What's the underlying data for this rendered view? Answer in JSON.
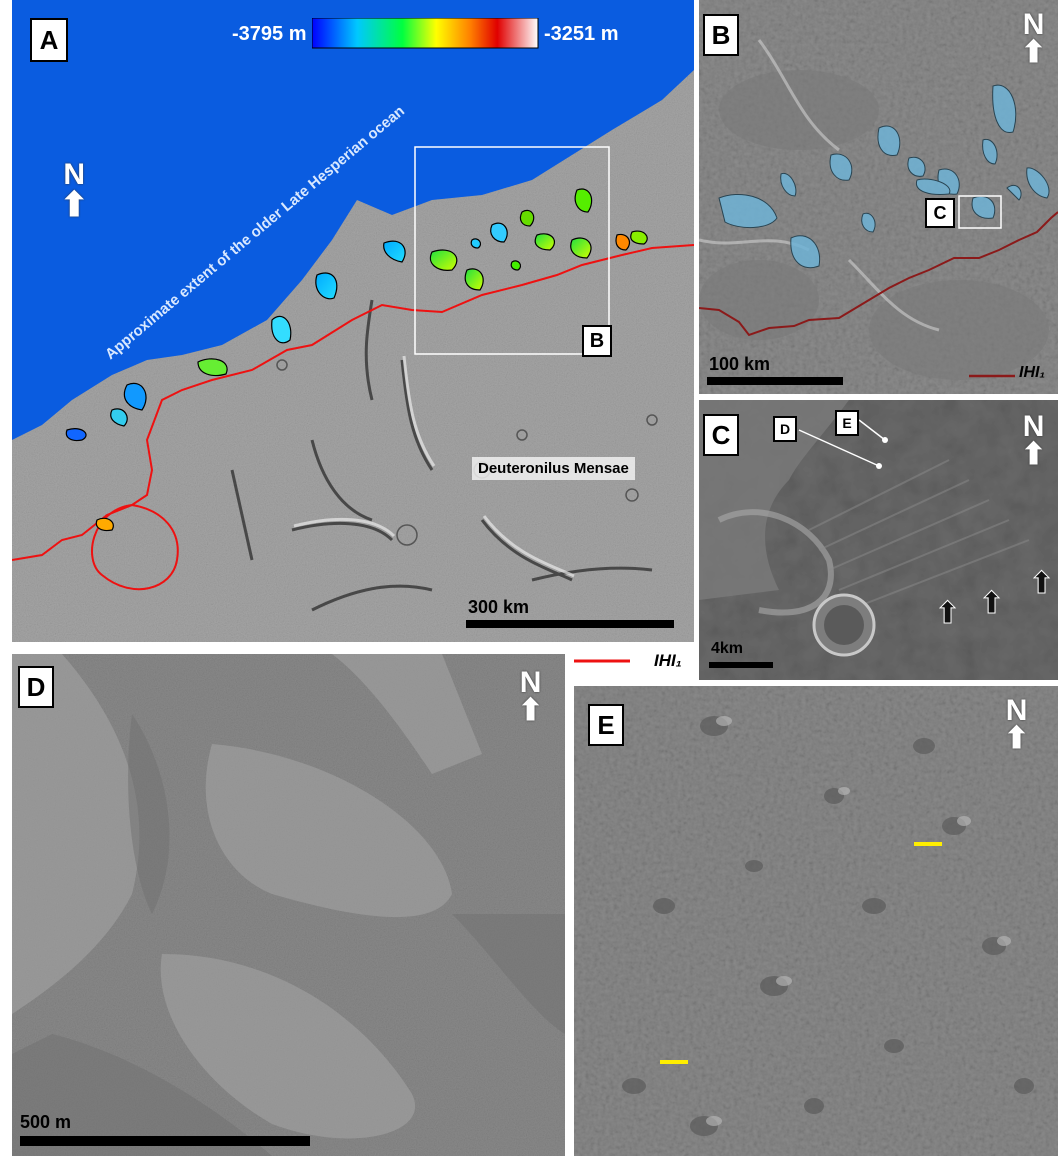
{
  "panels": {
    "a": {
      "label": "A",
      "colorbar": {
        "min_label": "-3795 m",
        "max_label": "-3251 m",
        "colors": [
          "#0000ff",
          "#00ffff",
          "#00ff00",
          "#ffff00",
          "#ff8000",
          "#ff0000",
          "#ffffff"
        ]
      },
      "north": "N",
      "ocean_label": "Approximate extent of  the older Late Hesperian ocean",
      "region_label": "Deuteronilus Mensae",
      "inset_label": "B",
      "scale_label": "300 km",
      "legend_label": "IHI₁",
      "legend_color": "#ee1111",
      "ocean_color": "#0a5ce0"
    },
    "b": {
      "label": "B",
      "north": "N",
      "inset_label": "C",
      "scale_label": "100 km",
      "legend_label": "IHI₁",
      "legend_color": "#8b1a1a"
    },
    "c": {
      "label": "C",
      "north": "N",
      "callout_d": "D",
      "callout_e": "E",
      "scale_label": "4km"
    },
    "d": {
      "label": "D",
      "north": "N",
      "scale_label": "500 m"
    },
    "e": {
      "label": "E",
      "north": "N"
    }
  }
}
